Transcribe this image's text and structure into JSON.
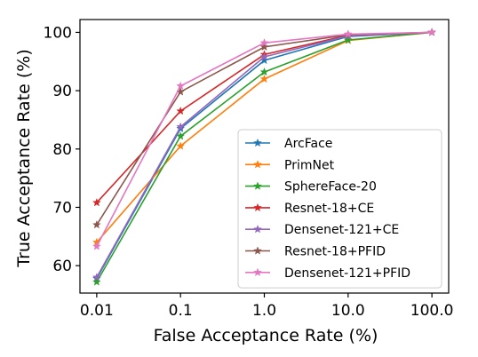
{
  "chart_data": {
    "type": "line",
    "xlabel": "False Acceptance Rate (%)",
    "ylabel": "True Acceptance Rate (%)",
    "x_scale": "log",
    "x": [
      0.01,
      0.1,
      1.0,
      10.0,
      100.0
    ],
    "x_tick_labels": [
      "0.01",
      "0.1",
      "1.0",
      "10.0",
      "100.0"
    ],
    "y_ticks": [
      60,
      70,
      80,
      90,
      100
    ],
    "ylim": [
      55.3,
      102.2
    ],
    "grid": false,
    "legend_position": "bottom-right",
    "series": [
      {
        "name": "ArcFace",
        "color": "#1f77b4",
        "values": [
          57.8,
          83.5,
          95.2,
          99.3,
          100.0
        ]
      },
      {
        "name": "PrimNet",
        "color": "#ff7f0e",
        "values": [
          64.0,
          80.5,
          92.0,
          98.6,
          100.0
        ]
      },
      {
        "name": "SphereFace-20",
        "color": "#2ca02c",
        "values": [
          57.2,
          82.2,
          93.2,
          98.7,
          100.0
        ]
      },
      {
        "name": "Resnet-18+CE",
        "color": "#d62728",
        "values": [
          70.8,
          86.5,
          96.2,
          99.5,
          100.0
        ]
      },
      {
        "name": "Densenet-121+CE",
        "color": "#9467bd",
        "values": [
          58.0,
          83.8,
          95.8,
          99.4,
          100.0
        ]
      },
      {
        "name": "Resnet-18+PFID",
        "color": "#8c564b",
        "values": [
          67.0,
          89.8,
          97.5,
          99.6,
          100.0
        ]
      },
      {
        "name": "Densenet-121+PFID",
        "color": "#e377c2",
        "values": [
          63.3,
          90.8,
          98.2,
          99.7,
          100.0
        ]
      }
    ]
  }
}
